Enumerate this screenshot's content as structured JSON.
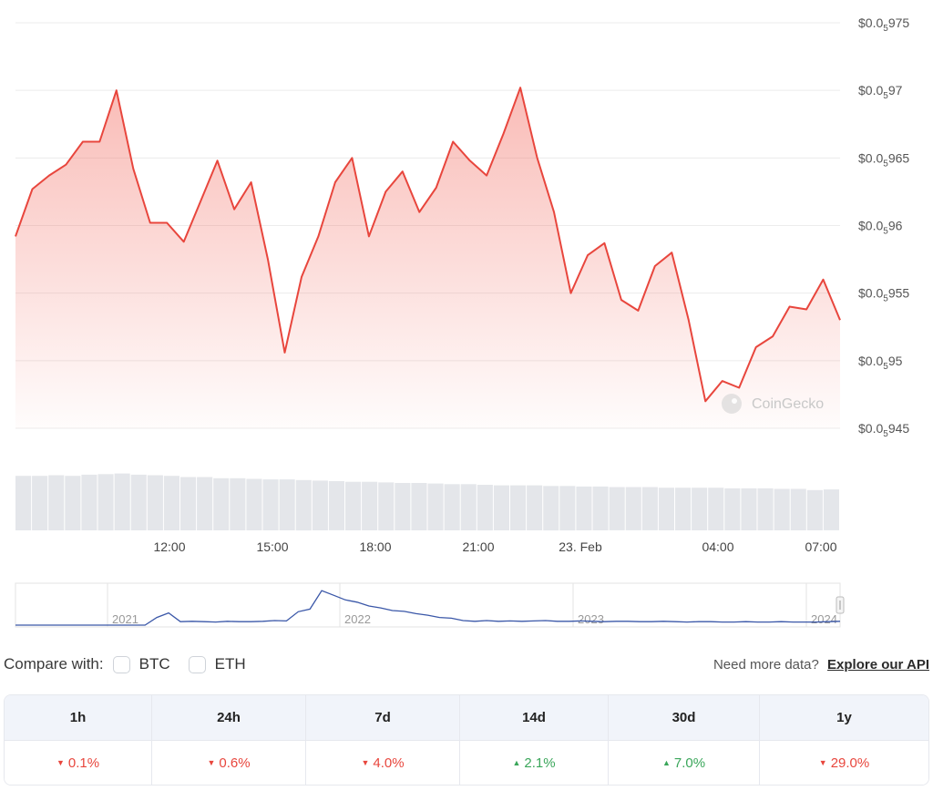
{
  "chart_data": {
    "type": "area",
    "y_axis_position": "right",
    "yticks": [
      {
        "base": "$0.0",
        "sub": "5",
        "tail": "975",
        "value": 9.75e-06
      },
      {
        "base": "$0.0",
        "sub": "5",
        "tail": "97",
        "value": 9.7e-06
      },
      {
        "base": "$0.0",
        "sub": "5",
        "tail": "965",
        "value": 9.65e-06
      },
      {
        "base": "$0.0",
        "sub": "5",
        "tail": "96",
        "value": 9.6e-06
      },
      {
        "base": "$0.0",
        "sub": "5",
        "tail": "955",
        "value": 9.55e-06
      },
      {
        "base": "$0.0",
        "sub": "5",
        "tail": "95",
        "value": 9.5e-06
      },
      {
        "base": "$0.0",
        "sub": "5",
        "tail": "945",
        "value": 9.45e-06
      }
    ],
    "ylim": [
      9.45e-06,
      9.75e-06
    ],
    "xticks": [
      "12:00",
      "15:00",
      "18:00",
      "21:00",
      "23. Feb",
      "04:00",
      "07:00"
    ],
    "x_hours": [
      0,
      0.5,
      1,
      1.5,
      2,
      2.5,
      3,
      3.5,
      4,
      4.5,
      5,
      5.5,
      6,
      6.5,
      7,
      7.5,
      8,
      8.5,
      9,
      9.5,
      10,
      10.5,
      11,
      11.5,
      12,
      12.5,
      13,
      13.5,
      14,
      14.5,
      15,
      15.5,
      16,
      16.5,
      17,
      17.5,
      18,
      18.5,
      19,
      19.5,
      20,
      20.5,
      21,
      21.5,
      22,
      22.5,
      23,
      23.5,
      24,
      24.5
    ],
    "series": [
      {
        "color": "#e8463d",
        "values": [
          9.592e-06,
          9.627e-06,
          9.637e-06,
          9.645e-06,
          9.662e-06,
          9.662e-06,
          9.7e-06,
          9.642e-06,
          9.602e-06,
          9.602e-06,
          9.588e-06,
          9.618e-06,
          9.648e-06,
          9.612e-06,
          9.632e-06,
          9.575e-06,
          9.506e-06,
          9.562e-06,
          9.592e-06,
          9.632e-06,
          9.65e-06,
          9.592e-06,
          9.625e-06,
          9.64e-06,
          9.61e-06,
          9.628e-06,
          9.662e-06,
          9.648e-06,
          9.637e-06,
          9.668e-06,
          9.702e-06,
          9.65e-06,
          9.61e-06,
          9.55e-06,
          9.578e-06,
          9.587e-06,
          9.545e-06,
          9.537e-06,
          9.57e-06,
          9.58e-06,
          9.53e-06,
          9.47e-06,
          9.485e-06,
          9.48e-06,
          9.51e-06,
          9.518e-06,
          9.54e-06,
          9.538e-06,
          9.56e-06,
          9.53e-06
        ]
      }
    ],
    "volume": [
      0.92,
      0.92,
      0.93,
      0.92,
      0.94,
      0.95,
      0.96,
      0.94,
      0.93,
      0.92,
      0.9,
      0.9,
      0.88,
      0.88,
      0.87,
      0.86,
      0.86,
      0.85,
      0.84,
      0.83,
      0.82,
      0.82,
      0.81,
      0.8,
      0.8,
      0.79,
      0.78,
      0.78,
      0.77,
      0.76,
      0.76,
      0.76,
      0.75,
      0.75,
      0.74,
      0.74,
      0.73,
      0.73,
      0.73,
      0.72,
      0.72,
      0.72,
      0.72,
      0.71,
      0.71,
      0.71,
      0.7,
      0.7,
      0.68,
      0.69
    ],
    "watermark": "CoinGecko",
    "navigator": {
      "year_labels": [
        "2021",
        "2022",
        "2023",
        "2024"
      ],
      "values": [
        0,
        0,
        0,
        0,
        0,
        0,
        0,
        0,
        0,
        0,
        0,
        0,
        0.2,
        0.32,
        0.09,
        0.1,
        0.09,
        0.08,
        0.1,
        0.09,
        0.09,
        0.1,
        0.12,
        0.11,
        0.35,
        0.42,
        0.9,
        0.78,
        0.66,
        0.6,
        0.5,
        0.45,
        0.38,
        0.36,
        0.3,
        0.26,
        0.2,
        0.18,
        0.12,
        0.1,
        0.12,
        0.1,
        0.11,
        0.1,
        0.11,
        0.12,
        0.1,
        0.1,
        0.11,
        0.1,
        0.09,
        0.1,
        0.1,
        0.09,
        0.09,
        0.1,
        0.09,
        0.08,
        0.09,
        0.09,
        0.08,
        0.08,
        0.09,
        0.08,
        0.08,
        0.09,
        0.08,
        0.08,
        0.08,
        0.09,
        0.1
      ]
    }
  },
  "compare": {
    "label": "Compare with:",
    "options": [
      "BTC",
      "ETH"
    ],
    "api_prompt": "Need more data?",
    "api_link": "Explore our API"
  },
  "stats": {
    "headers": [
      "1h",
      "24h",
      "7d",
      "14d",
      "30d",
      "1y"
    ],
    "values": [
      {
        "text": "0.1%",
        "direction": "down"
      },
      {
        "text": "0.6%",
        "direction": "down"
      },
      {
        "text": "4.0%",
        "direction": "down"
      },
      {
        "text": "2.1%",
        "direction": "up"
      },
      {
        "text": "7.0%",
        "direction": "up"
      },
      {
        "text": "29.0%",
        "direction": "down"
      }
    ],
    "colors": {
      "down": "#e8463d",
      "up": "#3aa65a"
    }
  }
}
